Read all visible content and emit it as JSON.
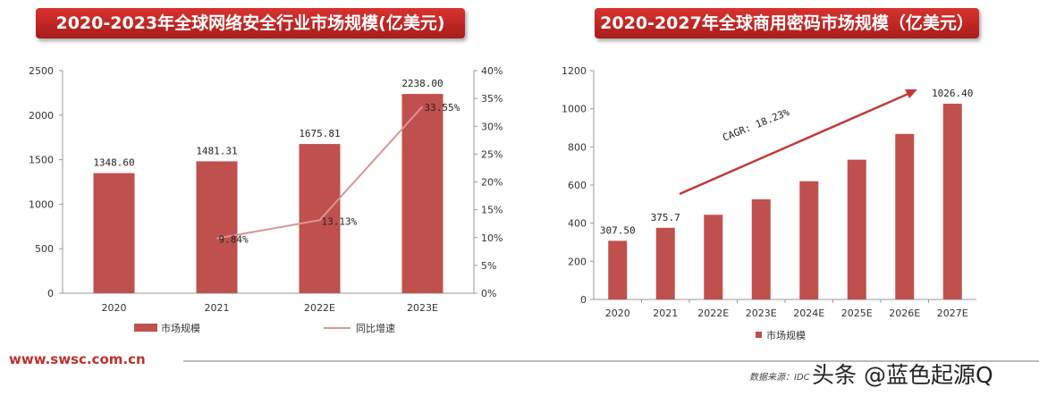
{
  "footer": {
    "site": "www.swsc.com.cn",
    "source": "数据来源：IDC",
    "watermark": "头条 @蓝色起源Q"
  },
  "colors": {
    "bar": "#c0504d",
    "line": "#d99694",
    "banner": "#c0302c",
    "arrow": "#c0393a"
  },
  "chart_data": [
    {
      "type": "bar",
      "title": "2020-2023年全球网络安全行业市场规模(亿美元)",
      "categories": [
        "2020",
        "2021",
        "2022E",
        "2023E"
      ],
      "series": [
        {
          "name": "市场规模",
          "type": "bar",
          "axis": "left",
          "values": [
            1348.6,
            1481.31,
            1675.81,
            2238.0
          ],
          "labels": [
            "1348.60",
            "1481.31",
            "1675.81",
            "2238.00"
          ]
        },
        {
          "name": "同比增速",
          "type": "line",
          "axis": "right",
          "values": [
            null,
            9.84,
            13.13,
            33.55
          ],
          "labels": [
            "",
            "9.84%",
            "13.13%",
            "33.55%"
          ]
        }
      ],
      "ylim": [
        0,
        2500
      ],
      "yticks": [
        "0",
        "500",
        "1000",
        "1500",
        "2000",
        "2500"
      ],
      "y2lim": [
        0,
        40
      ],
      "y2ticks": [
        "0%",
        "5%",
        "10%",
        "15%",
        "20%",
        "25%",
        "30%",
        "35%",
        "40%"
      ],
      "legend": "bottom",
      "grid": false
    },
    {
      "type": "bar",
      "title": "2020-2027年全球商用密码市场规模（亿美元）",
      "categories": [
        "2020",
        "2021",
        "2022E",
        "2023E",
        "2024E",
        "2025E",
        "2026E",
        "2027E"
      ],
      "series": [
        {
          "name": "市场规模",
          "values": [
            307.5,
            375.7,
            444,
            525,
            620,
            733,
            868,
            1026.4
          ],
          "labels": [
            "307.50",
            "375.7",
            "",
            "",
            "",
            "",
            "",
            "1026.40"
          ]
        }
      ],
      "ylim": [
        0,
        1200
      ],
      "yticks": [
        "0",
        "200",
        "400",
        "600",
        "800",
        "1000",
        "1200"
      ],
      "annotation": "CAGR: 18.23%",
      "legend": "bottom",
      "grid": false
    }
  ]
}
